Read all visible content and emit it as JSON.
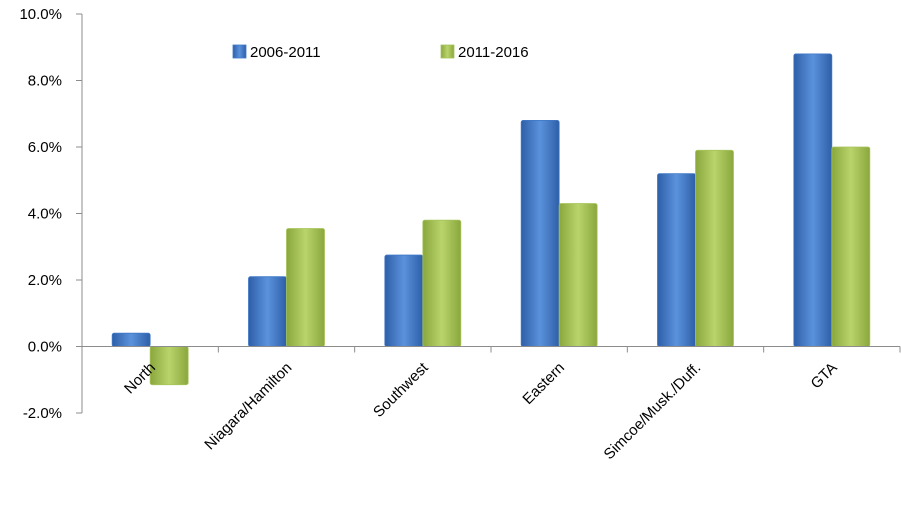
{
  "chart_data": {
    "type": "bar",
    "categories": [
      "North",
      "Niagara/Hamilton",
      "Southwest",
      "Eastern",
      "Simcoe/Musk./Duff.",
      "GTA"
    ],
    "series": [
      {
        "name": "2006-2011",
        "values": [
          0.4,
          2.1,
          2.75,
          6.8,
          5.2,
          8.8
        ],
        "color": "#3f78c8"
      },
      {
        "name": "2011-2016",
        "values": [
          -1.15,
          3.55,
          3.8,
          4.3,
          5.9,
          6.0
        ],
        "color": "#a6c45a"
      }
    ],
    "ylim": [
      -2.0,
      10.0
    ],
    "yticks": [
      -2.0,
      0.0,
      2.0,
      4.0,
      6.0,
      8.0,
      10.0
    ],
    "ytick_labels": [
      "-2.0%",
      "0.0%",
      "2.0%",
      "4.0%",
      "6.0%",
      "8.0%",
      "10.0%"
    ],
    "grid": false,
    "legend_position": "top"
  }
}
